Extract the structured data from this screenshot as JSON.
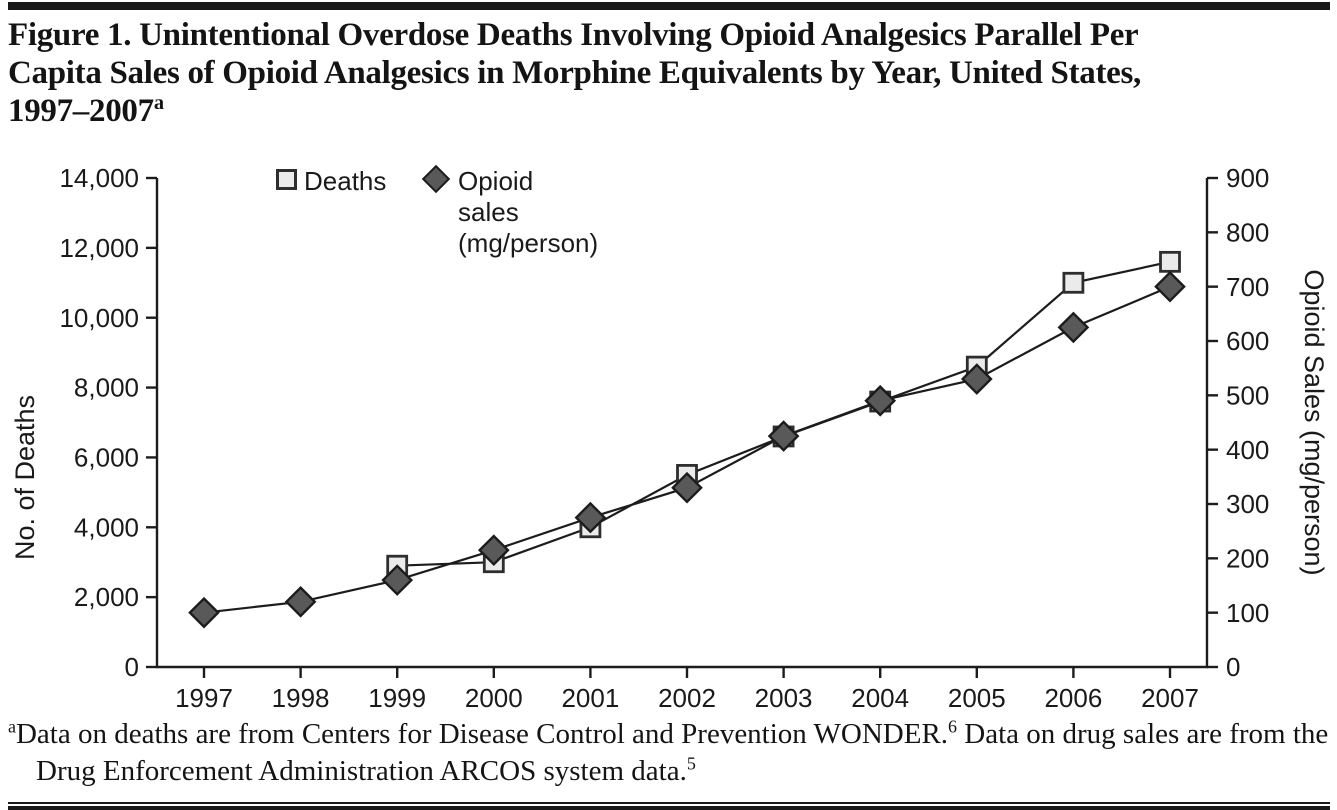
{
  "title": {
    "line1": "Figure 1. Unintentional Overdose Deaths Involving Opioid Analgesics Parallel Per",
    "line2": "Capita Sales of Opioid Analgesics in Morphine Equivalents by Year, United States,",
    "line3": "1997–2007",
    "superscript": "a"
  },
  "footnote": {
    "sup_a": "a",
    "part1": "Data on deaths are from Centers for Disease Control and Prevention WONDER.",
    "sup1": "6",
    "part2": " Data on drug sales are from the Drug Enforcement Administration ARCOS system data.",
    "sup2": "5"
  },
  "colors": {
    "ink": "#1c1c1c",
    "deaths_marker_fill": "#ebebeb",
    "deaths_marker_stroke": "#2e2e2e",
    "sales_marker_fill": "#595959",
    "sales_marker_stroke": "#1c1c1c",
    "rule": "#1a1a1a"
  },
  "chart_data": {
    "type": "line",
    "title": "Figure 1. Unintentional Overdose Deaths Involving Opioid Analgesics Parallel Per Capita Sales of Opioid Analgesics in Morphine Equivalents by Year, United States, 1997–2007",
    "x_categories": [
      "1997",
      "1998",
      "1999",
      "2000",
      "2001",
      "2002",
      "2003",
      "2004",
      "2005",
      "2006",
      "2007"
    ],
    "series": [
      {
        "name": "Deaths",
        "axis": "left",
        "marker": "square",
        "values": [
          null,
          null,
          2900,
          3000,
          4000,
          5500,
          6600,
          7600,
          8600,
          11000,
          11600
        ]
      },
      {
        "name": "Opioid sales (mg/person)",
        "axis": "right",
        "marker": "diamond",
        "values": [
          100,
          120,
          160,
          215,
          275,
          330,
          425,
          490,
          530,
          625,
          700
        ]
      }
    ],
    "left_axis": {
      "label": "No. of Deaths",
      "range": [
        0,
        14000
      ],
      "ticks": [
        0,
        2000,
        4000,
        6000,
        8000,
        10000,
        12000,
        14000
      ],
      "tick_labels": [
        "0",
        "2,000",
        "4,000",
        "6,000",
        "8,000",
        "10,000",
        "12,000",
        "14,000"
      ]
    },
    "right_axis": {
      "label": "Opioid Sales (mg/person)",
      "range": [
        0,
        900
      ],
      "ticks": [
        0,
        100,
        200,
        300,
        400,
        500,
        600,
        700,
        800,
        900
      ],
      "tick_labels": [
        "0",
        "100",
        "200",
        "300",
        "400",
        "500",
        "600",
        "700",
        "800",
        "900"
      ]
    },
    "x_axis": {
      "tick_labels": [
        "1997",
        "1998",
        "1999",
        "2000",
        "2001",
        "2002",
        "2003",
        "2004",
        "2005",
        "2006",
        "2007"
      ]
    },
    "grid": false,
    "legend_position": "top-inside"
  }
}
